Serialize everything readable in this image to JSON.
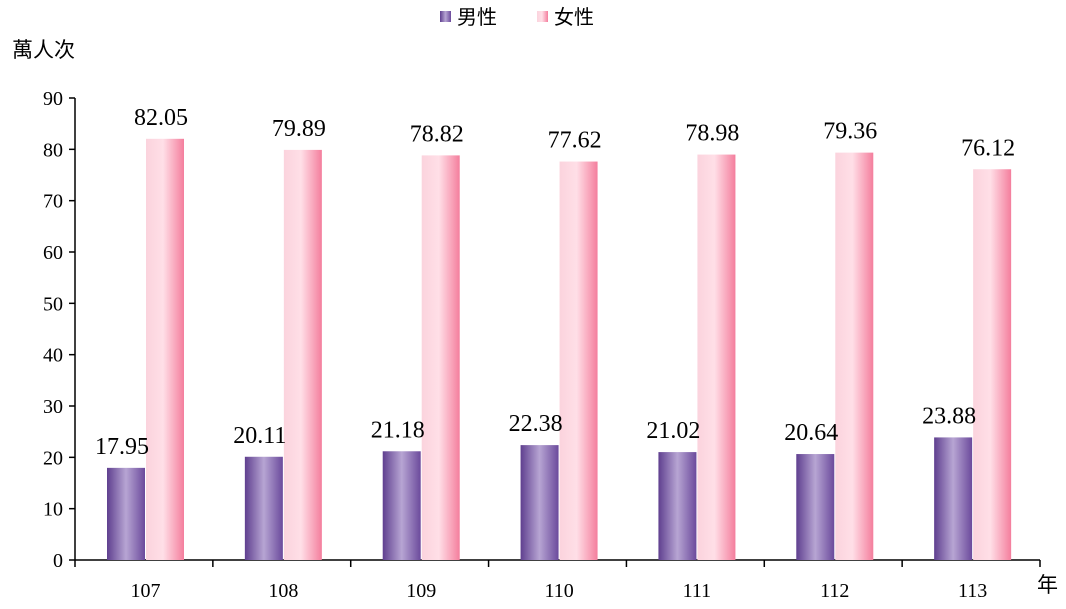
{
  "chart_data": {
    "type": "bar",
    "title": "",
    "ylabel": "萬人次",
    "xlabel": "年",
    "categories": [
      "107",
      "108",
      "109",
      "110",
      "111",
      "112",
      "113"
    ],
    "series": [
      {
        "name": "男性",
        "values": [
          17.95,
          20.11,
          21.18,
          22.38,
          21.02,
          20.64,
          23.88
        ],
        "labels": [
          "17.95",
          "20.11",
          "21.18",
          "22.38",
          "21.02",
          "20.64",
          "23.88"
        ],
        "color": "#8a6fb5"
      },
      {
        "name": "女性",
        "values": [
          82.05,
          79.89,
          78.82,
          77.62,
          78.98,
          79.36,
          76.12
        ],
        "labels": [
          "82.05",
          "79.89",
          "78.82",
          "77.62",
          "78.98",
          "79.36",
          "76.12"
        ],
        "color": "#f58aa6"
      }
    ],
    "ylim": [
      0,
      90
    ],
    "yticks": [
      0,
      10,
      20,
      30,
      40,
      50,
      60,
      70,
      80,
      90
    ],
    "grid": false,
    "legend_position": "top-center"
  }
}
